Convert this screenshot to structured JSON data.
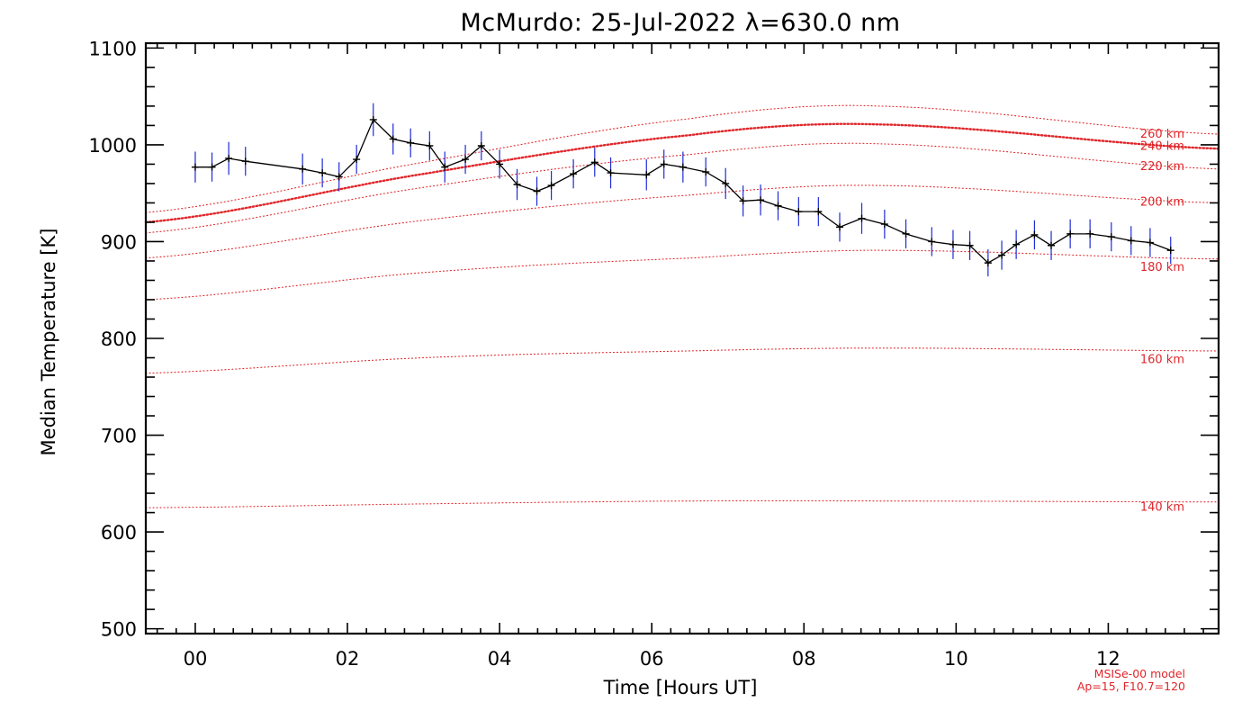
{
  "chart_data": {
    "type": "line",
    "title": "McMurdo: 25-Jul-2022 λ=630.0 nm",
    "xlabel": "Time [Hours UT]",
    "ylabel": "Median Temperature [K]",
    "xlim": [
      -0.65,
      13.45
    ],
    "ylim": [
      495,
      1105
    ],
    "x_ticks": [
      0,
      2,
      4,
      6,
      8,
      10,
      12
    ],
    "x_tick_labels": [
      "00",
      "02",
      "04",
      "06",
      "08",
      "10",
      "12"
    ],
    "y_ticks": [
      500,
      600,
      700,
      800,
      900,
      1000,
      1100
    ],
    "y_tick_labels": [
      "500",
      "600",
      "700",
      "800",
      "900",
      "1000",
      "1100"
    ],
    "grid": false,
    "colors": {
      "data": "#000000",
      "error_bars": "#1f2bd6",
      "model": "#e0262a",
      "axes": "#000000"
    },
    "series": [
      {
        "x": [
          0.0,
          0.22,
          0.44,
          0.66,
          1.41,
          1.67,
          1.89,
          2.12,
          2.34,
          2.6,
          2.83,
          3.08,
          3.28,
          3.55,
          3.76,
          4.0,
          4.23,
          4.49,
          4.68,
          4.97,
          5.25,
          5.46,
          5.93,
          6.16,
          6.41,
          6.71,
          6.97,
          7.2,
          7.43,
          7.66,
          7.93,
          8.19,
          8.47,
          8.76,
          9.06,
          9.34,
          9.68,
          9.96,
          10.18,
          10.42,
          10.6,
          10.79,
          11.03,
          11.25,
          11.5,
          11.76,
          12.04,
          12.3,
          12.55,
          12.82
        ],
        "y": [
          977,
          977,
          986,
          983,
          975,
          971,
          967,
          985,
          1026,
          1006,
          1002,
          999,
          977,
          985,
          999,
          980,
          959,
          952,
          958,
          970,
          982,
          971,
          969,
          980,
          977,
          972,
          960,
          942,
          943,
          937,
          931,
          931,
          915,
          924,
          918,
          908,
          900,
          897,
          896,
          878,
          886,
          897,
          907,
          896,
          908,
          908,
          905,
          901,
          899,
          891
        ],
        "y_err": [
          16,
          15,
          17,
          15,
          16,
          15,
          15,
          15,
          17,
          16,
          15,
          15,
          16,
          15,
          15,
          15,
          16,
          15,
          15,
          15,
          15,
          16,
          16,
          15,
          16,
          15,
          16,
          16,
          16,
          15,
          15,
          15,
          15,
          16,
          15,
          15,
          15,
          15,
          15,
          14,
          15,
          15,
          15,
          15,
          15,
          15,
          15,
          15,
          15,
          14
        ]
      }
    ],
    "model_curves": [
      {
        "label": "140 km",
        "x": [
          -0.65,
          3,
          6.5,
          9,
          13.45
        ],
        "y": [
          625,
          629,
          632,
          632,
          631
        ],
        "bold": false
      },
      {
        "label": "160 km",
        "x": [
          -0.65,
          3,
          6.5,
          9,
          13.45
        ],
        "y": [
          764,
          780,
          787,
          790,
          787
        ],
        "bold": false
      },
      {
        "label": "180 km",
        "x": [
          -0.65,
          3,
          6.5,
          9,
          13.45
        ],
        "y": [
          840,
          868,
          883,
          891,
          882
        ],
        "bold": false
      },
      {
        "label": "200 km",
        "x": [
          -0.65,
          3,
          6.5,
          9,
          13.45
        ],
        "y": [
          883,
          922,
          948,
          958,
          940
        ],
        "bold": false
      },
      {
        "label": "220 km",
        "x": [
          -0.65,
          3,
          6.5,
          9,
          13.45
        ],
        "y": [
          909,
          956,
          990,
          1001,
          975
        ],
        "bold": false
      },
      {
        "label": "240 km",
        "x": [
          -0.65,
          3,
          6.5,
          9,
          13.45
        ],
        "y": [
          920,
          970,
          1010,
          1021,
          996
        ],
        "bold": true
      },
      {
        "label": "260 km",
        "x": [
          -0.65,
          3,
          6.5,
          9,
          13.45
        ],
        "y": [
          930,
          982,
          1027,
          1040,
          1011
        ],
        "bold": false
      }
    ],
    "annotations": [
      "MSISe-00 model",
      "Ap=15, F10.7=120"
    ]
  }
}
